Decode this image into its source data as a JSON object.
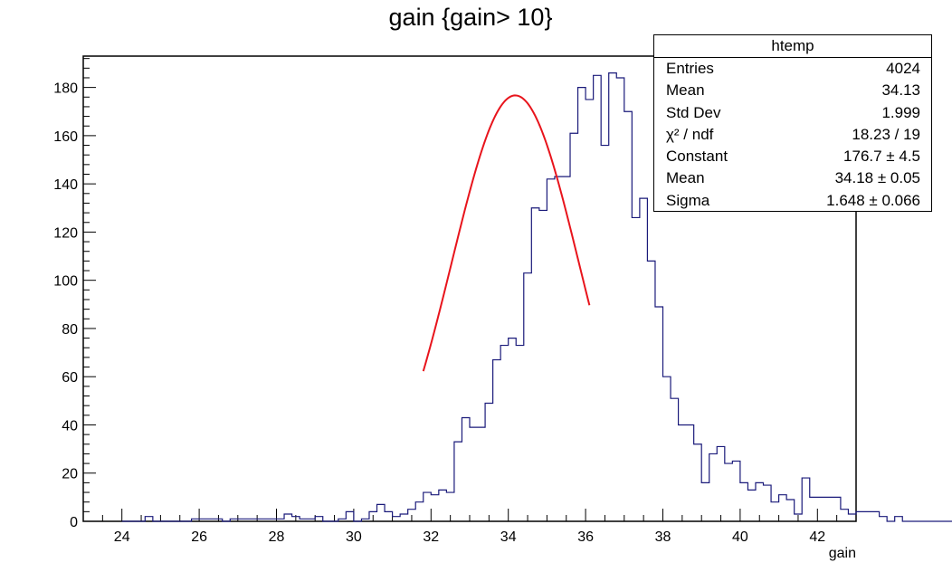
{
  "chart_data": {
    "type": "histogram",
    "title": "gain {gain> 10}",
    "xlabel": "gain",
    "ylabel": "",
    "xlim": [
      23,
      43
    ],
    "ylim": [
      0,
      193
    ],
    "xticks": [
      24,
      26,
      28,
      30,
      32,
      34,
      36,
      38,
      40,
      42
    ],
    "yticks": [
      0,
      20,
      40,
      60,
      80,
      100,
      120,
      140,
      160,
      180
    ],
    "bin_width": 0.2,
    "bins_start": 24,
    "counts": [
      0,
      0,
      0,
      2,
      0,
      0,
      0,
      0,
      0,
      1,
      1,
      1,
      1,
      0,
      1,
      1,
      1,
      1,
      1,
      1,
      1,
      3,
      2,
      1,
      1,
      2,
      0,
      0,
      1,
      4,
      0,
      1,
      4,
      7,
      4,
      2,
      3,
      5,
      8,
      12,
      11,
      13,
      12,
      33,
      43,
      39,
      39,
      49,
      67,
      73,
      76,
      73,
      103,
      130,
      129,
      142,
      143,
      143,
      161,
      180,
      175,
      185,
      156,
      186,
      184,
      170,
      126,
      134,
      108,
      89,
      60,
      51,
      40,
      40,
      32,
      16,
      28,
      31,
      24,
      25,
      16,
      13,
      16,
      15,
      8,
      11,
      9,
      3,
      18,
      10,
      10,
      10,
      10,
      5,
      3,
      4,
      4,
      4,
      2,
      0,
      2,
      0,
      0,
      0,
      0,
      0,
      0,
      0,
      0,
      0
    ],
    "line_color": "#1a1a7a",
    "fit": {
      "function": "gaus",
      "range": [
        31.8,
        36.1
      ],
      "constant": 176.7,
      "mean": 34.18,
      "sigma": 1.648,
      "color": "#e8141c"
    },
    "legend": "top-right"
  },
  "stats": {
    "name": "htemp",
    "rows": [
      {
        "key": "Entries",
        "value": "4024"
      },
      {
        "key": "Mean",
        "value": "34.13"
      },
      {
        "key": "Std Dev",
        "value": "1.999"
      },
      {
        "key": "χ² / ndf",
        "value": "18.23 / 19"
      },
      {
        "key": "Constant",
        "value": "176.7 ± 4.5"
      },
      {
        "key": "Mean",
        "value": "34.18 ± 0.05"
      },
      {
        "key": "Sigma",
        "value": "1.648 ± 0.066"
      }
    ]
  }
}
